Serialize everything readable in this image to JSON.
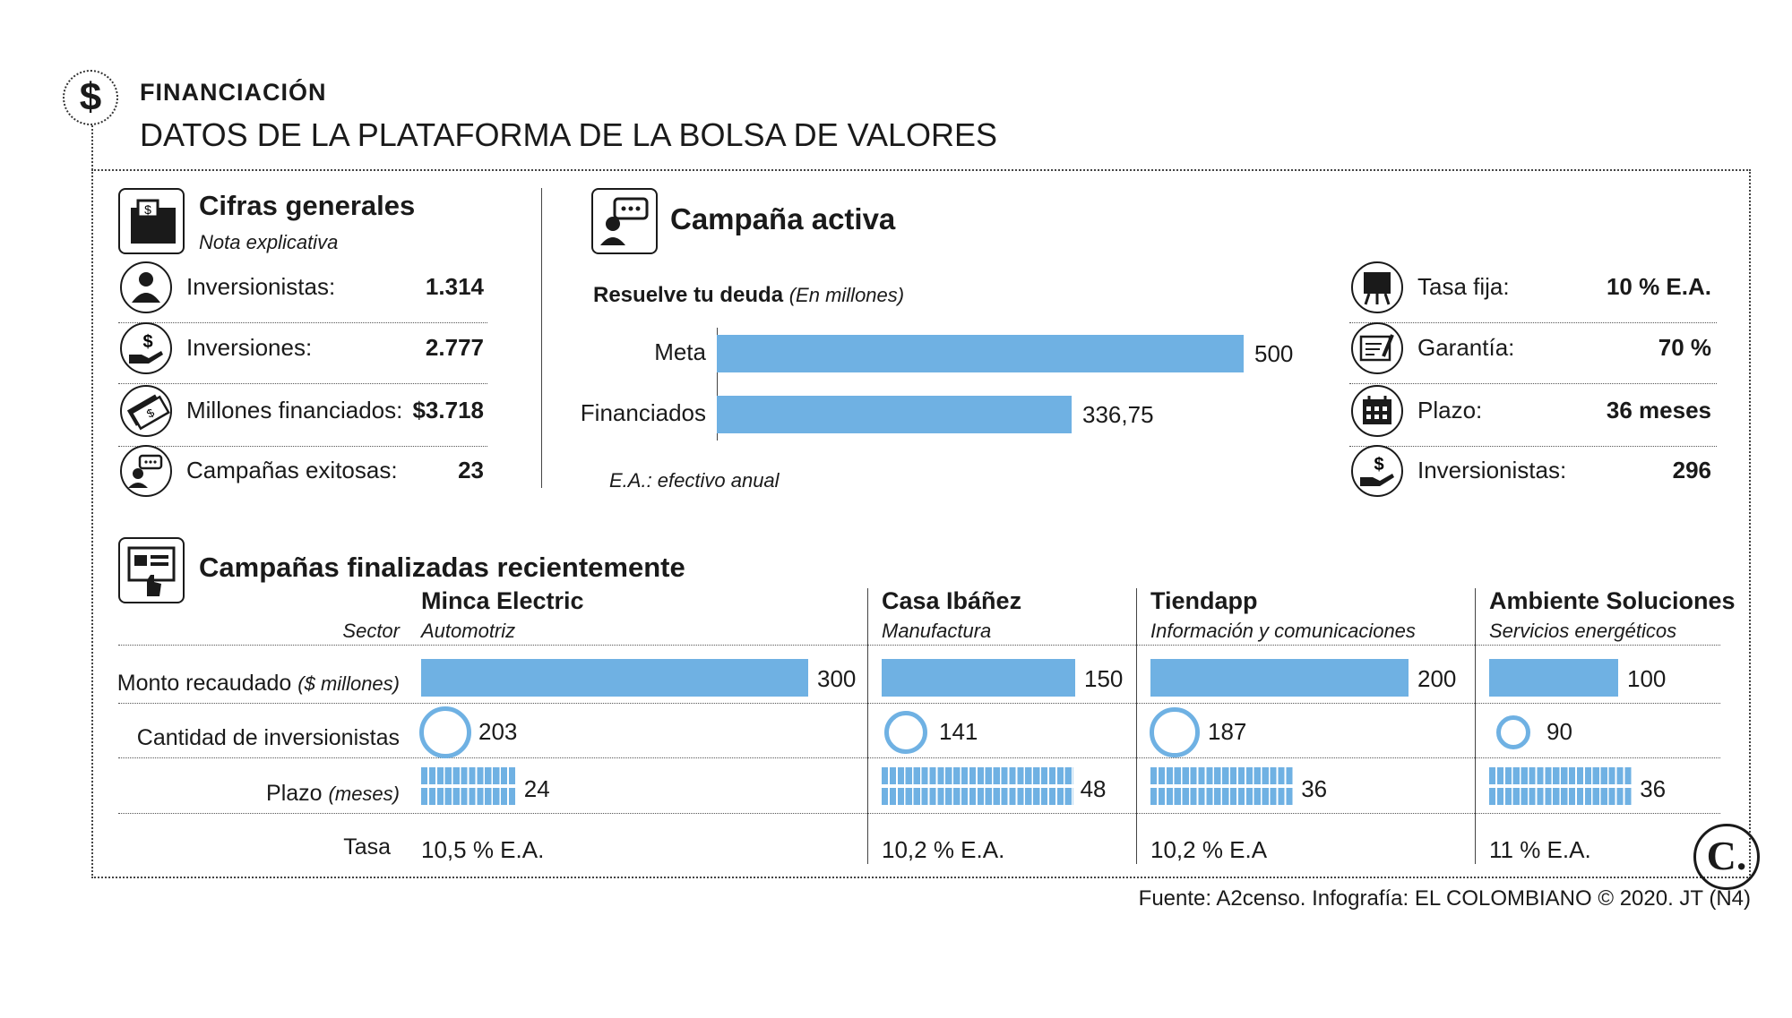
{
  "header": {
    "kicker": "FINANCIACIÓN",
    "title": "DATOS DE LA PLATAFORMA DE LA BOLSA DE VALORES"
  },
  "general": {
    "title": "Cifras generales",
    "subtitle": "Nota explicativa",
    "items": [
      {
        "label": "Inversionistas:",
        "value": "1.314",
        "icon": "investor-icon"
      },
      {
        "label": "Inversiones:",
        "value": "2.777",
        "icon": "money-hand-icon"
      },
      {
        "label": "Millones financiados:",
        "value": "$3.718",
        "icon": "banknotes-icon"
      },
      {
        "label": "Campañas exitosas:",
        "value": "23",
        "icon": "chat-person-icon"
      }
    ]
  },
  "active": {
    "title": "Campaña activa",
    "chart_title": "Resuelve tu deuda",
    "chart_unit": "(En millones)",
    "note": "E.A.: efectivo anual",
    "details": [
      {
        "label": "Tasa fija:",
        "value": "10 % E.A.",
        "icon": "easel-icon"
      },
      {
        "label": "Garantía:",
        "value": "70 %",
        "icon": "certificate-icon"
      },
      {
        "label": "Plazo:",
        "value": "36 meses",
        "icon": "calendar-icon"
      },
      {
        "label": "Inversionistas:",
        "value": "296",
        "icon": "money-hand-icon"
      }
    ]
  },
  "recent": {
    "title": "Campañas finalizadas recientemente",
    "row_labels": {
      "sector": "Sector",
      "monto": "Monto recaudado",
      "monto_unit": "($ millones)",
      "cantidad": "Cantidad de inversionistas",
      "plazo": "Plazo",
      "plazo_unit": "(meses)",
      "tasa": "Tasa"
    }
  },
  "footer": {
    "source": "Fuente: A2censo. Infografía: EL COLOMBIANO © 2020. JT (N4)",
    "logo_letter": "C."
  },
  "colors": {
    "bar": "#6fb1e3",
    "text": "#1a1a1a"
  },
  "chart_data": [
    {
      "type": "bar",
      "orientation": "horizontal",
      "title": "Resuelve tu deuda (En millones)",
      "categories": [
        "Meta",
        "Financiados"
      ],
      "values": [
        500,
        336.75
      ],
      "value_labels": [
        "500",
        "336,75"
      ],
      "xlim": [
        0,
        500
      ]
    },
    {
      "type": "table",
      "columns": [
        {
          "name": "Minca Electric",
          "sector": "Automotriz",
          "monto": 300,
          "inversionistas": 203,
          "plazo": 24,
          "tasa": "10,5 % E.A."
        },
        {
          "name": "Casa Ibáñez",
          "sector": "Manufactura",
          "monto": 150,
          "inversionistas": 141,
          "plazo": 48,
          "tasa": "10,2 % E.A."
        },
        {
          "name": "Tiendapp",
          "sector": "Información y comunicaciones",
          "monto": 200,
          "inversionistas": 187,
          "plazo": 36,
          "tasa": "10,2 % E.A"
        },
        {
          "name": "Ambiente Soluciones",
          "sector": "Servicios energéticos",
          "monto": 100,
          "inversionistas": 90,
          "plazo": 36,
          "tasa": "11 % E.A."
        }
      ]
    }
  ]
}
